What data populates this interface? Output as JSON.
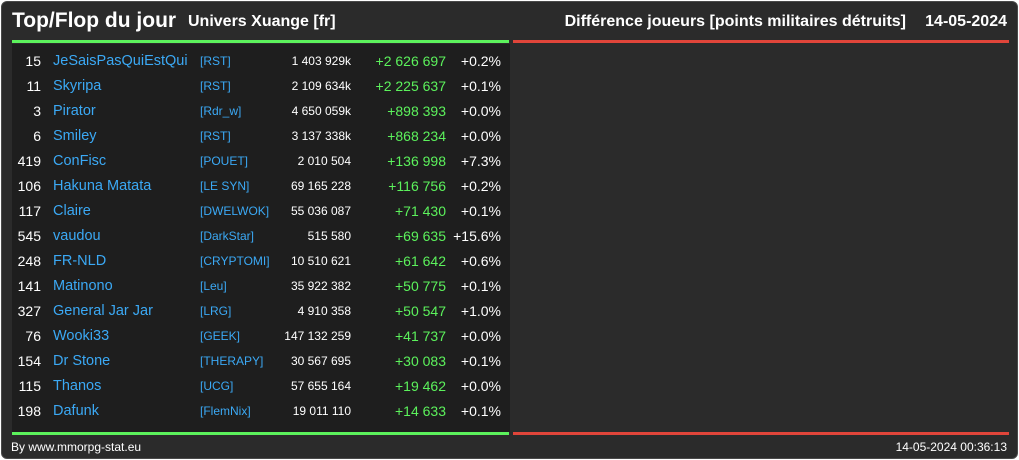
{
  "header": {
    "title": "Top/Flop du jour",
    "universe": "Univers Xuange [fr]",
    "metric": "Différence joueurs [points militaires détruits]",
    "date": "14-05-2024"
  },
  "colors": {
    "background": "#2b2b2b",
    "panel": "#1e1e1e",
    "top_accent": "#5cf25c",
    "flop_accent": "#e0453a",
    "link": "#3ba9f5",
    "gain": "#5cf25c"
  },
  "top_rows": [
    {
      "rank": "15",
      "name": "JeSaisPasQuiEstQui",
      "alliance": "[RST]",
      "points": "1 403 929k",
      "diff": "+2 626 697",
      "pct": "+0.2%"
    },
    {
      "rank": "11",
      "name": "Skyripa",
      "alliance": "[RST]",
      "points": "2 109 634k",
      "diff": "+2 225 637",
      "pct": "+0.1%"
    },
    {
      "rank": "3",
      "name": "Pirator",
      "alliance": "[Rdr_w]",
      "points": "4 650 059k",
      "diff": "+898 393",
      "pct": "+0.0%"
    },
    {
      "rank": "6",
      "name": "Smiley",
      "alliance": "[RST]",
      "points": "3 137 338k",
      "diff": "+868 234",
      "pct": "+0.0%"
    },
    {
      "rank": "419",
      "name": "ConFisc",
      "alliance": "[POUET]",
      "points": "2 010 504",
      "diff": "+136 998",
      "pct": "+7.3%"
    },
    {
      "rank": "106",
      "name": "Hakuna Matata",
      "alliance": "[LE SYN]",
      "points": "69 165 228",
      "diff": "+116 756",
      "pct": "+0.2%"
    },
    {
      "rank": "117",
      "name": "Claire",
      "alliance": "[DWELWOK]",
      "points": "55 036 087",
      "diff": "+71 430",
      "pct": "+0.1%"
    },
    {
      "rank": "545",
      "name": "vaudou",
      "alliance": "[DarkStar]",
      "points": "515 580",
      "diff": "+69 635",
      "pct": "+15.6%"
    },
    {
      "rank": "248",
      "name": "FR-NLD",
      "alliance": "[CRYPTOMI]",
      "points": "10 510 621",
      "diff": "+61 642",
      "pct": "+0.6%"
    },
    {
      "rank": "141",
      "name": "Matinono",
      "alliance": "[Leu]",
      "points": "35 922 382",
      "diff": "+50 775",
      "pct": "+0.1%"
    },
    {
      "rank": "327",
      "name": "General Jar Jar",
      "alliance": "[LRG]",
      "points": "4 910 358",
      "diff": "+50 547",
      "pct": "+1.0%"
    },
    {
      "rank": "76",
      "name": "Wooki33",
      "alliance": "[GEEK]",
      "points": "147 132 259",
      "diff": "+41 737",
      "pct": "+0.0%"
    },
    {
      "rank": "154",
      "name": "Dr Stone",
      "alliance": "[THERAPY]",
      "points": "30 567 695",
      "diff": "+30 083",
      "pct": "+0.1%"
    },
    {
      "rank": "115",
      "name": "Thanos",
      "alliance": "[UCG]",
      "points": "57 655 164",
      "diff": "+19 462",
      "pct": "+0.0%"
    },
    {
      "rank": "198",
      "name": "Dafunk",
      "alliance": "[FlemNix]",
      "points": "19 011 110",
      "diff": "+14 633",
      "pct": "+0.1%"
    }
  ],
  "footer": {
    "credit": "By www.mmorpg-stat.eu",
    "timestamp": "14-05-2024 00:36:13"
  }
}
